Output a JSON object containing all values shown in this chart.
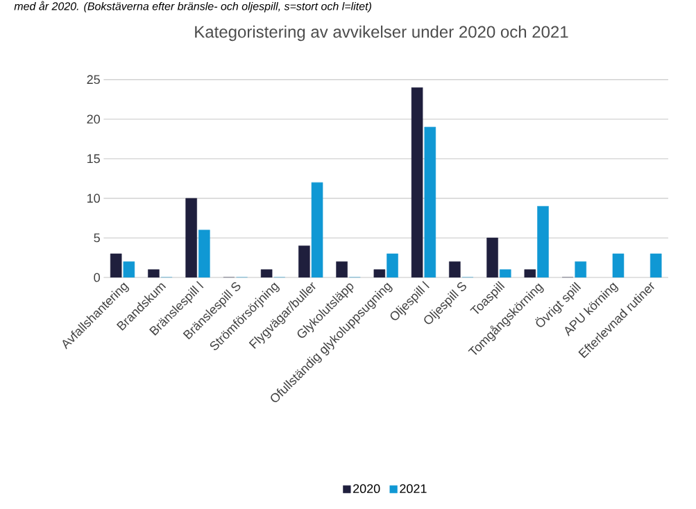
{
  "chart_data": {
    "type": "bar",
    "title": "Kategoristering av avvikelser under 2020 och 2021",
    "annotations": [
      "med år 2020. (Bokstäverna efter bränsle- och oljespill, s=stort och l=litet)"
    ],
    "categories": [
      "Avfallshantering",
      "Brandskum",
      "Bränslespill l",
      "Bränslespill S",
      "Strömförsörjning",
      "Flygvägar/buller",
      "Glykolutsläpp",
      "Ofullständig glykoluppsugning",
      "Oljespill l",
      "Oljespill S",
      "Toaspill",
      "Tomgångskörning",
      "Övrigt spill",
      "APU körning",
      "Efterlevnad rutiner"
    ],
    "series": [
      {
        "name": "2020",
        "color": "#1f1f3d",
        "values": [
          3,
          1,
          10,
          0,
          1,
          4,
          2,
          1,
          24,
          2,
          5,
          1,
          0,
          null,
          null
        ]
      },
      {
        "name": "2021",
        "color": "#1098d4",
        "values": [
          2,
          0,
          6,
          0,
          0,
          12,
          0,
          3,
          19,
          0,
          1,
          9,
          2,
          3,
          3
        ]
      }
    ],
    "ylim": [
      0,
      25
    ],
    "yticks": [
      0,
      5,
      10,
      15,
      20,
      25
    ],
    "grid": "y",
    "legend": "bottom"
  }
}
